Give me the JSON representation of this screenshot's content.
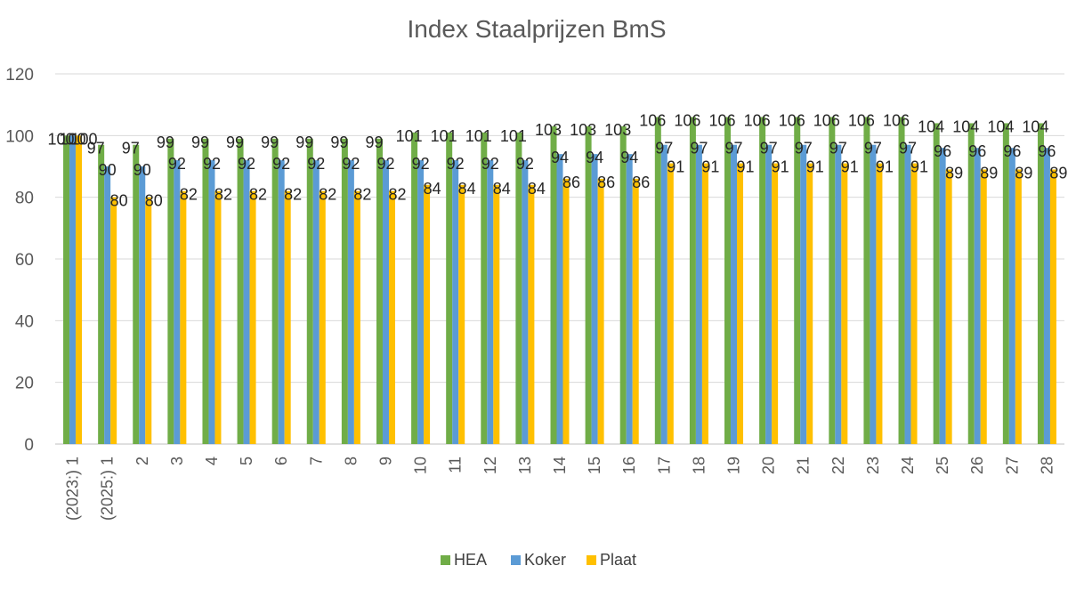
{
  "chart_data": {
    "type": "bar",
    "title": "Index Staalprijzen BmS",
    "xlabel": "",
    "ylabel": "",
    "ylim": [
      0,
      120
    ],
    "yticks": [
      0,
      20,
      40,
      60,
      80,
      100,
      120
    ],
    "grid": true,
    "legend_position": "bottom",
    "categories": [
      "(2023:) 1",
      "(2025:) 1",
      "2",
      "3",
      "4",
      "5",
      "6",
      "7",
      "8",
      "9",
      "10",
      "11",
      "12",
      "13",
      "14",
      "15",
      "16",
      "17",
      "18",
      "19",
      "20",
      "21",
      "22",
      "23",
      "24",
      "25",
      "26",
      "27",
      "28"
    ],
    "series": [
      {
        "name": "HEA",
        "color": "#70ad47",
        "values": [
          100,
          97,
          97,
          99,
          99,
          99,
          99,
          99,
          99,
          99,
          101,
          101,
          101,
          101,
          103,
          103,
          103,
          106,
          106,
          106,
          106,
          106,
          106,
          106,
          106,
          104,
          104,
          104,
          104
        ]
      },
      {
        "name": "Koker",
        "color": "#5b9bd5",
        "values": [
          100,
          90,
          90,
          92,
          92,
          92,
          92,
          92,
          92,
          92,
          92,
          92,
          92,
          92,
          94,
          94,
          94,
          97,
          97,
          97,
          97,
          97,
          97,
          97,
          97,
          96,
          96,
          96,
          96
        ]
      },
      {
        "name": "Plaat",
        "color": "#ffc000",
        "values": [
          100,
          80,
          80,
          82,
          82,
          82,
          82,
          82,
          82,
          82,
          84,
          84,
          84,
          84,
          86,
          86,
          86,
          91,
          91,
          91,
          91,
          91,
          91,
          91,
          91,
          89,
          89,
          89,
          89
        ]
      }
    ]
  }
}
